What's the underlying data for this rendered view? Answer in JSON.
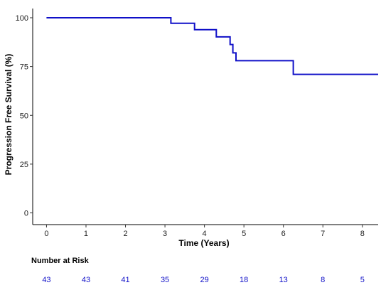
{
  "chart_data": {
    "type": "line",
    "title": "",
    "xlabel": "Time (Years)",
    "ylabel": "Progression Free Survival (%)",
    "xlim": [
      -0.35,
      8.4
    ],
    "ylim": [
      -6,
      104
    ],
    "x_ticks": [
      0,
      1,
      2,
      3,
      4,
      5,
      6,
      7,
      8
    ],
    "y_ticks": [
      0,
      25,
      50,
      75,
      100
    ],
    "grid": false,
    "line_color": "#1010c8",
    "series": [
      {
        "step": true,
        "x": [
          0,
          3.15,
          3.15,
          3.75,
          3.75,
          4.3,
          4.3,
          4.65,
          4.65,
          4.72,
          4.72,
          4.8,
          4.8,
          4.85,
          4.85,
          6.25,
          6.25,
          8.4
        ],
        "y": [
          100,
          100,
          97.2,
          97.2,
          93.9,
          93.9,
          90.2,
          90.2,
          86.3,
          86.3,
          82.0,
          82.0,
          78.0,
          78.0,
          78.0,
          78.0,
          71.0,
          71.0
        ]
      }
    ],
    "risk_table": {
      "title": "Number at Risk",
      "times": [
        0,
        1,
        2,
        3,
        4,
        5,
        6,
        7,
        8
      ],
      "values": [
        "43",
        "43",
        "41",
        "35",
        "29",
        "18",
        "13",
        "8",
        "5"
      ],
      "color": "#1010c8"
    }
  }
}
